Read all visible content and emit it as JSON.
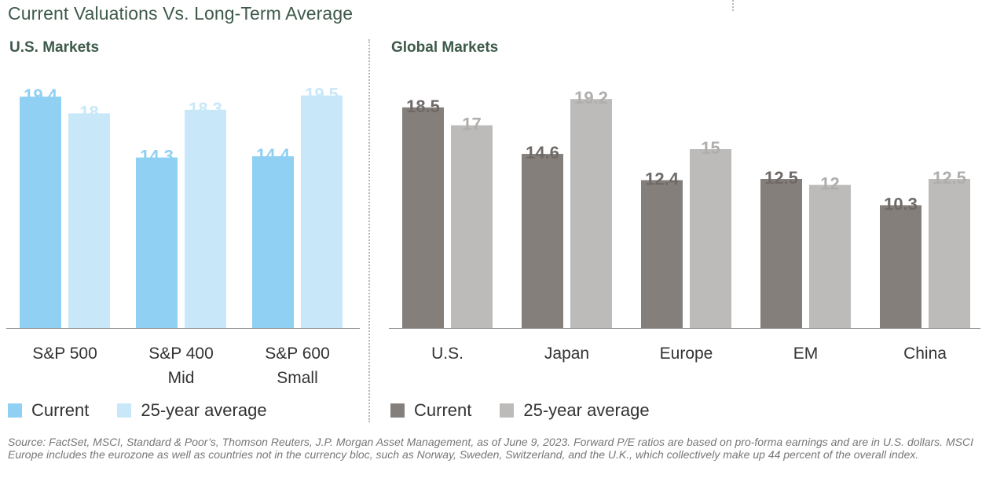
{
  "title": "Current Valuations Vs. Long-Term Average",
  "panels": [
    {
      "title": "U.S. Markets"
    },
    {
      "title": "Global Markets"
    }
  ],
  "legend": {
    "us": [
      {
        "label": "Current",
        "color": "#8fd0f3"
      },
      {
        "label": "25-year average",
        "color": "#c8e8fa"
      }
    ],
    "global": [
      {
        "label": "Current",
        "color": "#857f7b"
      },
      {
        "label": "25-year average",
        "color": "#bdbbb9"
      }
    ]
  },
  "source": "Source: FactSet, MSCI, Standard & Poor’s, Thomson Reuters, J.P. Morgan Asset Management, as of June 9, 2023. Forward P/E ratios are based on pro-forma earnings and are in U.S. dollars. MSCI Europe includes the eurozone as well as countries not in the currency bloc, such as Norway, Sweden, Switzerland, and the U.K., which collectively make up 44 percent of the overall index.",
  "chart_data": [
    {
      "type": "bar",
      "title": "U.S. Markets",
      "categories": [
        [
          "S&P 500"
        ],
        [
          "S&P 400",
          "Mid"
        ],
        [
          "S&P 600",
          "Small"
        ]
      ],
      "series": [
        {
          "name": "Current",
          "color": "#8fd0f3",
          "values": [
            19.4,
            14.3,
            14.4
          ]
        },
        {
          "name": "25-year average",
          "color": "#c8e8fa",
          "values": [
            18,
            18.3,
            19.5
          ]
        }
      ],
      "value_labels": [
        [
          "19.4",
          "14.3",
          "14.4"
        ],
        [
          "18",
          "18.3",
          "19.5"
        ]
      ],
      "ylim": [
        0,
        20
      ],
      "grid": false,
      "legend_position": "bottom"
    },
    {
      "type": "bar",
      "title": "Global Markets",
      "categories": [
        [
          "U.S."
        ],
        [
          "Japan"
        ],
        [
          "Europe"
        ],
        [
          "EM"
        ],
        [
          "China"
        ]
      ],
      "series": [
        {
          "name": "Current",
          "color": "#857f7b",
          "values": [
            18.5,
            14.6,
            12.4,
            12.5,
            10.3
          ]
        },
        {
          "name": "25-year average",
          "color": "#bdbbb9",
          "values": [
            17,
            19.2,
            15,
            12,
            12.5
          ]
        }
      ],
      "value_labels": [
        [
          "18.5",
          "14.6",
          "12.4",
          "12.5",
          "10.3"
        ],
        [
          "17",
          "19.2",
          "15",
          "12",
          "12.5"
        ]
      ],
      "ylim": [
        0,
        20
      ],
      "grid": false,
      "legend_position": "bottom"
    }
  ]
}
